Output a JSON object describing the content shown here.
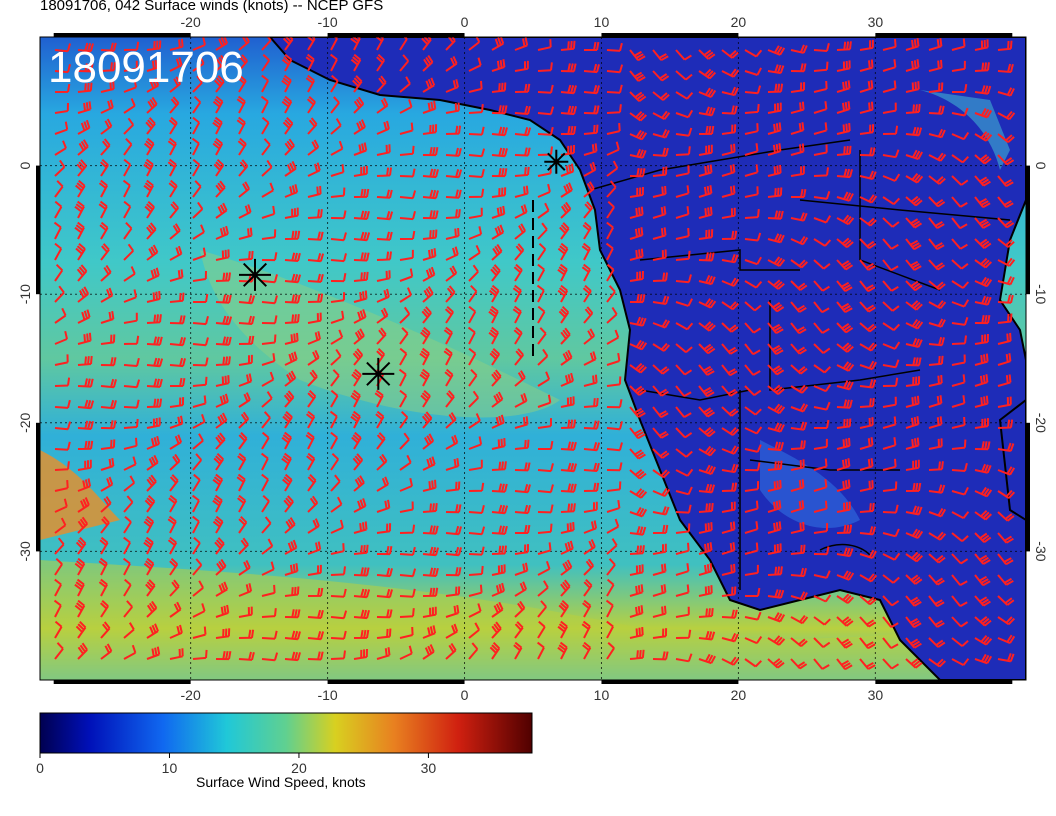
{
  "header": {
    "title": "18091706, 042 Surface winds (knots) -- NCEP GFS"
  },
  "map": {
    "stamp": "18091706",
    "lon_range": [
      -31,
      41
    ],
    "lat_range": [
      -40,
      10
    ],
    "lon_ticks": [
      "-20",
      "-10",
      "0",
      "10",
      "20",
      "30"
    ],
    "lat_ticks": [
      "0",
      "-10",
      "-20",
      "-30"
    ],
    "land_color": "#2030c0",
    "ocean_base_color": "#28b8d8",
    "barb_color": "#ff2020",
    "coast_color": "#000000"
  },
  "markers": [
    {
      "symbol": "asterisk",
      "lon": -15.3,
      "lat": -8.5,
      "size": "large"
    },
    {
      "symbol": "asterisk",
      "lon": -6.3,
      "lat": -16.2,
      "size": "large"
    },
    {
      "symbol": "asterisk",
      "lon": 6.7,
      "lat": 0.3,
      "size": "small"
    }
  ],
  "colorbar": {
    "label": "Surface Wind Speed, knots",
    "ticks": [
      "0",
      "10",
      "20",
      "30"
    ],
    "range": [
      0,
      38
    ],
    "colors": [
      "#000060",
      "#0010c0",
      "#1060e8",
      "#20b0e0",
      "#30d0c8",
      "#80d070",
      "#d8d020",
      "#e89020",
      "#d83010",
      "#a00010",
      "#500000"
    ]
  }
}
